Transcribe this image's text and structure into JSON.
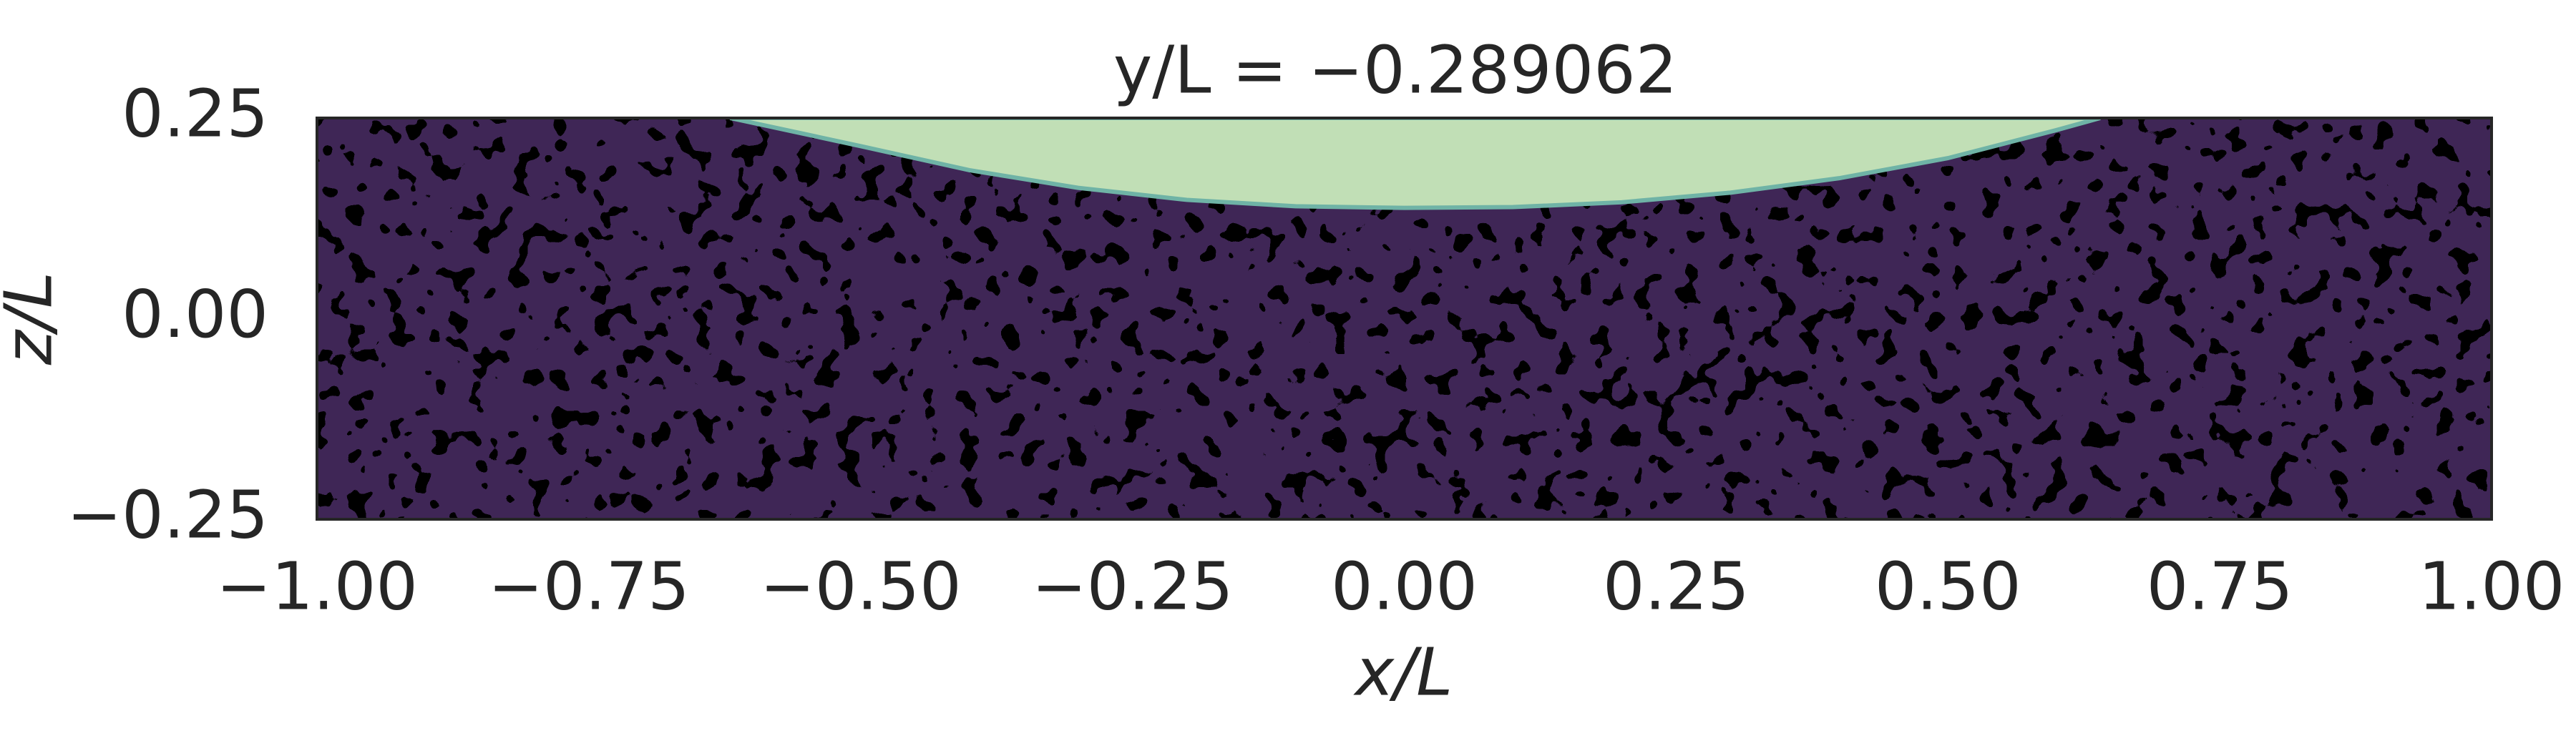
{
  "chart_data": {
    "type": "contour",
    "title": "y/L = −0.289062",
    "xlabel": "x/L",
    "ylabel": "z/L",
    "x": [
      -0.62,
      -0.5,
      -0.4,
      -0.3,
      -0.2,
      -0.1,
      0,
      0.1,
      0.2,
      0.3,
      0.4,
      0.5,
      0.6,
      0.64
    ],
    "values": [
      0.25,
      0.215,
      0.185,
      0.163,
      0.148,
      0.14,
      0.138,
      0.139,
      0.145,
      0.157,
      0.175,
      0.2,
      0.235,
      0.25
    ],
    "color": "#c1dfb6",
    "edge_color": "#6fb3a6",
    "background_color": "#3f2656",
    "noise_color": "#000000",
    "xlim": [
      -1,
      1
    ],
    "xticks": [
      {
        "value": -1,
        "label": "−1.00"
      },
      {
        "value": -0.75,
        "label": "−0.75"
      },
      {
        "value": -0.5,
        "label": "−0.50"
      },
      {
        "value": -0.25,
        "label": "−0.25"
      },
      {
        "value": 0,
        "label": "0.00"
      },
      {
        "value": 0.25,
        "label": "0.25"
      },
      {
        "value": 0.5,
        "label": "0.50"
      },
      {
        "value": 0.75,
        "label": "0.75"
      },
      {
        "value": 1,
        "label": "1.00"
      }
    ],
    "ylim": [
      -0.25,
      0.25
    ],
    "yticks": [
      {
        "value": -0.25,
        "label": "−0.25"
      },
      {
        "value": 0,
        "label": "0.00"
      },
      {
        "value": 0.25,
        "label": "0.25"
      }
    ]
  }
}
